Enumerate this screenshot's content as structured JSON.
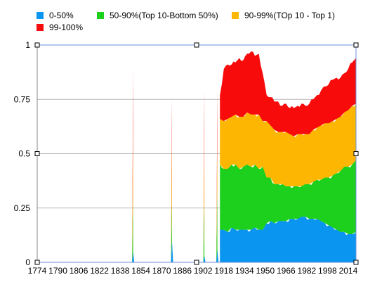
{
  "chart_data": {
    "type": "area",
    "stacked": true,
    "title": "",
    "xlabel": "",
    "ylabel": "",
    "ylim": [
      0,
      1
    ],
    "xlim": [
      1774,
      2020
    ],
    "y_ticks": [
      "0",
      "0.25",
      "0.5",
      "0.75",
      "1"
    ],
    "x_ticks": [
      "1774",
      "1790",
      "1806",
      "1822",
      "1838",
      "1854",
      "1870",
      "1886",
      "1902",
      "1918",
      "1934",
      "1950",
      "1966",
      "1982",
      "1998",
      "2014"
    ],
    "grid": "horizontal",
    "legend_position": "top",
    "series": [
      {
        "name": "0-50%",
        "color": "#0a96f0"
      },
      {
        "name": "50-90%(Top 10-Bottom 50%)",
        "color": "#1ed01e"
      },
      {
        "name": "90-99%(TOp 10 - Top 1)",
        "color": "#fdb702"
      },
      {
        "name": "99-100%",
        "color": "#f70b0b"
      }
    ],
    "spikes": [
      {
        "x": 1848,
        "values": [
          0.05,
          0.25,
          0.35,
          0.25
        ]
      },
      {
        "x": 1878,
        "values": [
          0.1,
          0.2,
          0.3,
          0.15
        ]
      },
      {
        "x": 1903,
        "values": [
          0.03,
          0.27,
          0.3,
          0.2
        ]
      },
      {
        "x": 1913,
        "values": [
          0.06,
          0.3,
          0.25,
          0.18
        ]
      }
    ],
    "continuous": {
      "x": [
        1915,
        1918,
        1921,
        1924,
        1927,
        1930,
        1933,
        1936,
        1939,
        1942,
        1945,
        1948,
        1951,
        1954,
        1957,
        1960,
        1963,
        1966,
        1969,
        1972,
        1975,
        1978,
        1981,
        1984,
        1987,
        1990,
        1993,
        1996,
        1999,
        2002,
        2005,
        2008,
        2011,
        2014,
        2017,
        2020
      ],
      "series_values": [
        [
          0.15,
          0.15,
          0.14,
          0.16,
          0.15,
          0.15,
          0.15,
          0.15,
          0.15,
          0.16,
          0.15,
          0.15,
          0.18,
          0.19,
          0.18,
          0.19,
          0.19,
          0.19,
          0.2,
          0.2,
          0.2,
          0.21,
          0.21,
          0.2,
          0.2,
          0.2,
          0.19,
          0.18,
          0.17,
          0.16,
          0.15,
          0.14,
          0.14,
          0.13,
          0.13,
          0.14
        ],
        [
          0.3,
          0.28,
          0.29,
          0.29,
          0.3,
          0.28,
          0.29,
          0.3,
          0.29,
          0.29,
          0.28,
          0.29,
          0.21,
          0.2,
          0.18,
          0.17,
          0.17,
          0.16,
          0.15,
          0.15,
          0.15,
          0.14,
          0.15,
          0.16,
          0.17,
          0.18,
          0.19,
          0.21,
          0.22,
          0.24,
          0.26,
          0.28,
          0.3,
          0.31,
          0.32,
          0.33
        ],
        [
          0.21,
          0.22,
          0.23,
          0.22,
          0.23,
          0.24,
          0.23,
          0.24,
          0.24,
          0.23,
          0.25,
          0.21,
          0.26,
          0.24,
          0.25,
          0.24,
          0.24,
          0.25,
          0.24,
          0.23,
          0.24,
          0.24,
          0.23,
          0.23,
          0.24,
          0.24,
          0.25,
          0.25,
          0.25,
          0.25,
          0.25,
          0.25,
          0.25,
          0.26,
          0.27,
          0.26
        ],
        [
          0.11,
          0.24,
          0.25,
          0.24,
          0.24,
          0.27,
          0.26,
          0.27,
          0.29,
          0.27,
          0.28,
          0.22,
          0.12,
          0.13,
          0.13,
          0.14,
          0.12,
          0.13,
          0.12,
          0.13,
          0.13,
          0.14,
          0.13,
          0.14,
          0.14,
          0.15,
          0.16,
          0.17,
          0.18,
          0.19,
          0.19,
          0.18,
          0.18,
          0.19,
          0.2,
          0.21
        ]
      ]
    }
  }
}
